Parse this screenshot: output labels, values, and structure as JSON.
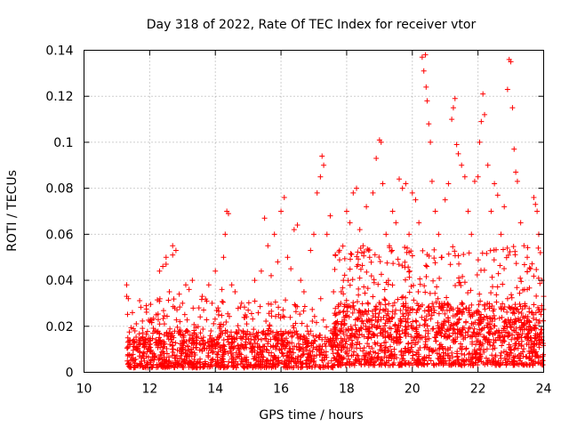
{
  "chart_data": {
    "type": "scatter",
    "title": "Day 318 of 2022, Rate Of TEC Index for receiver vtor",
    "xlabel": "GPS time / hours",
    "ylabel": "ROTI / TECUs",
    "xlim": [
      10,
      24
    ],
    "ylim": [
      0,
      0.14
    ],
    "x_ticks": [
      "10",
      "12",
      "14",
      "16",
      "18",
      "20",
      "22",
      "24"
    ],
    "y_ticks": [
      "0",
      "0.02",
      "0.04",
      "0.06",
      "0.08",
      "0.1",
      "0.12",
      "0.14"
    ],
    "grid": true,
    "marker": "plus",
    "series_color": "#ff0000",
    "points": [
      [
        11.3,
        0.038
      ],
      [
        11.3,
        0.033
      ],
      [
        11.35,
        0.032
      ],
      [
        11.4,
        0.012
      ],
      [
        11.5,
        0.019
      ],
      [
        11.55,
        0.018
      ],
      [
        11.7,
        0.009
      ],
      [
        11.8,
        0.012
      ],
      [
        12.0,
        0.014
      ],
      [
        12.1,
        0.017
      ],
      [
        12.2,
        0.025
      ],
      [
        12.3,
        0.044
      ],
      [
        12.4,
        0.046
      ],
      [
        12.5,
        0.05
      ],
      [
        12.5,
        0.047
      ],
      [
        12.6,
        0.035
      ],
      [
        12.7,
        0.051
      ],
      [
        12.7,
        0.055
      ],
      [
        12.8,
        0.053
      ],
      [
        12.9,
        0.034
      ],
      [
        13.0,
        0.03
      ],
      [
        13.1,
        0.038
      ],
      [
        13.2,
        0.036
      ],
      [
        13.3,
        0.04
      ],
      [
        13.5,
        0.028
      ],
      [
        13.6,
        0.033
      ],
      [
        13.8,
        0.038
      ],
      [
        13.9,
        0.03
      ],
      [
        14.0,
        0.044
      ],
      [
        14.1,
        0.025
      ],
      [
        14.2,
        0.036
      ],
      [
        14.25,
        0.05
      ],
      [
        14.3,
        0.06
      ],
      [
        14.35,
        0.07
      ],
      [
        14.4,
        0.069
      ],
      [
        14.5,
        0.038
      ],
      [
        14.6,
        0.035
      ],
      [
        14.8,
        0.03
      ],
      [
        15.0,
        0.027
      ],
      [
        15.2,
        0.04
      ],
      [
        15.4,
        0.044
      ],
      [
        15.5,
        0.067
      ],
      [
        15.6,
        0.055
      ],
      [
        15.7,
        0.042
      ],
      [
        15.8,
        0.06
      ],
      [
        15.9,
        0.048
      ],
      [
        16.0,
        0.07
      ],
      [
        16.1,
        0.076
      ],
      [
        16.2,
        0.05
      ],
      [
        16.3,
        0.045
      ],
      [
        16.4,
        0.062
      ],
      [
        16.5,
        0.064
      ],
      [
        16.6,
        0.04
      ],
      [
        16.7,
        0.035
      ],
      [
        16.9,
        0.053
      ],
      [
        17.0,
        0.06
      ],
      [
        17.1,
        0.078
      ],
      [
        17.2,
        0.085
      ],
      [
        17.25,
        0.094
      ],
      [
        17.3,
        0.09
      ],
      [
        17.4,
        0.06
      ],
      [
        17.5,
        0.068
      ],
      [
        17.6,
        0.035
      ],
      [
        17.9,
        0.04
      ],
      [
        18.0,
        0.07
      ],
      [
        18.1,
        0.065
      ],
      [
        18.2,
        0.078
      ],
      [
        18.3,
        0.08
      ],
      [
        18.4,
        0.062
      ],
      [
        18.5,
        0.055
      ],
      [
        18.6,
        0.072
      ],
      [
        18.7,
        0.05
      ],
      [
        18.8,
        0.078
      ],
      [
        18.9,
        0.093
      ],
      [
        19.0,
        0.101
      ],
      [
        19.05,
        0.1
      ],
      [
        19.1,
        0.082
      ],
      [
        19.2,
        0.06
      ],
      [
        19.3,
        0.055
      ],
      [
        19.4,
        0.07
      ],
      [
        19.5,
        0.065
      ],
      [
        19.6,
        0.084
      ],
      [
        19.7,
        0.08
      ],
      [
        19.8,
        0.082
      ],
      [
        19.9,
        0.06
      ],
      [
        20.0,
        0.078
      ],
      [
        20.1,
        0.075
      ],
      [
        20.2,
        0.065
      ],
      [
        20.3,
        0.137
      ],
      [
        20.35,
        0.131
      ],
      [
        20.4,
        0.138
      ],
      [
        20.42,
        0.124
      ],
      [
        20.45,
        0.118
      ],
      [
        20.5,
        0.108
      ],
      [
        20.55,
        0.1
      ],
      [
        20.6,
        0.083
      ],
      [
        20.7,
        0.07
      ],
      [
        20.8,
        0.06
      ],
      [
        20.9,
        0.05
      ],
      [
        21.0,
        0.075
      ],
      [
        21.1,
        0.082
      ],
      [
        21.2,
        0.11
      ],
      [
        21.25,
        0.115
      ],
      [
        21.3,
        0.119
      ],
      [
        21.35,
        0.099
      ],
      [
        21.4,
        0.095
      ],
      [
        21.5,
        0.09
      ],
      [
        21.6,
        0.085
      ],
      [
        21.7,
        0.07
      ],
      [
        21.8,
        0.06
      ],
      [
        21.9,
        0.083
      ],
      [
        22.0,
        0.085
      ],
      [
        22.05,
        0.1
      ],
      [
        22.1,
        0.109
      ],
      [
        22.15,
        0.121
      ],
      [
        22.2,
        0.112
      ],
      [
        22.3,
        0.09
      ],
      [
        22.4,
        0.07
      ],
      [
        22.5,
        0.082
      ],
      [
        22.6,
        0.077
      ],
      [
        22.7,
        0.06
      ],
      [
        22.8,
        0.072
      ],
      [
        22.9,
        0.123
      ],
      [
        22.95,
        0.136
      ],
      [
        23.0,
        0.135
      ],
      [
        23.05,
        0.115
      ],
      [
        23.1,
        0.097
      ],
      [
        23.15,
        0.087
      ],
      [
        23.2,
        0.083
      ],
      [
        23.3,
        0.065
      ],
      [
        23.4,
        0.055
      ],
      [
        23.5,
        0.05
      ],
      [
        23.6,
        0.045
      ],
      [
        23.7,
        0.076
      ],
      [
        23.75,
        0.073
      ],
      [
        23.8,
        0.07
      ],
      [
        23.85,
        0.06
      ],
      [
        23.9,
        0.052
      ],
      [
        23.95,
        0.04
      ],
      [
        24.0,
        0.033
      ]
    ],
    "dense_bands": [
      {
        "x_start": 11.3,
        "x_end": 17.6,
        "y_min": 0.002,
        "y_max": 0.018,
        "count": 900
      },
      {
        "x_start": 11.3,
        "x_end": 17.6,
        "y_min": 0.01,
        "y_max": 0.032,
        "count": 260
      },
      {
        "x_start": 17.6,
        "x_end": 24.0,
        "y_min": 0.003,
        "y_max": 0.03,
        "count": 1100
      },
      {
        "x_start": 17.6,
        "x_end": 24.0,
        "y_min": 0.015,
        "y_max": 0.055,
        "count": 420
      }
    ]
  }
}
